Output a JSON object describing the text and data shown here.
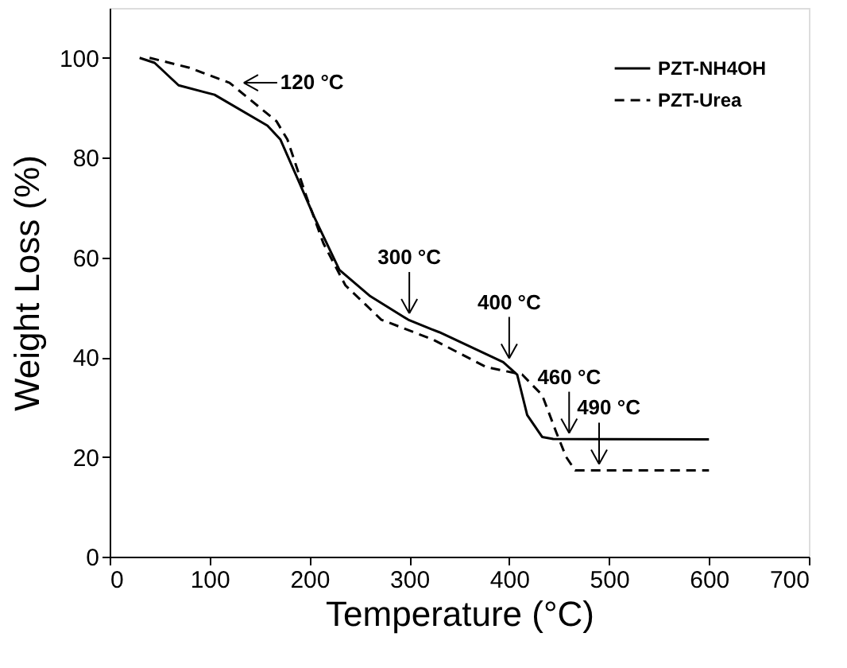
{
  "chart_data": {
    "type": "line",
    "xlabel": "Temperature (°C)",
    "ylabel": "Weight Loss  (%)",
    "xlim": [
      0,
      700
    ],
    "xticks": [
      0,
      100,
      200,
      300,
      400,
      500,
      600,
      700
    ],
    "ylim": [
      0,
      110
    ],
    "yticks": [
      0,
      20,
      40,
      60,
      80,
      100
    ],
    "grid": false,
    "legend": "top right",
    "marker": "none",
    "series": [
      {
        "name": "PZT-NH4OH",
        "color": "#000000",
        "line_style": "solid",
        "x": [
          30,
          45,
          69,
          105,
          158,
          171,
          189,
          205,
          230,
          261,
          299,
          322,
          330,
          394,
          408,
          418,
          433,
          444,
          600
        ],
        "values": [
          100,
          99,
          94.5,
          92.6,
          86.4,
          83.6,
          75.4,
          68,
          57.5,
          52.2,
          47.5,
          45.6,
          45,
          39,
          36.5,
          28.4,
          24,
          23.6,
          23.5
        ]
      },
      {
        "name": "PZT-Urea",
        "color": "#000000",
        "line_style": "dashed",
        "x": [
          40,
          80,
          120,
          167,
          178,
          197,
          214,
          236,
          272,
          324,
          377,
          413,
          433,
          447,
          457,
          466,
          600
        ],
        "values": [
          100,
          98,
          95,
          87.3,
          83.6,
          72.2,
          62.8,
          54.4,
          47.5,
          43.5,
          38,
          36.5,
          32.4,
          25,
          20,
          17.3,
          17.3
        ]
      }
    ],
    "annotations": [
      {
        "text": "120 °C",
        "x": 120,
        "y": 95
      },
      {
        "text": "300 °C",
        "x": 300,
        "y": 47.5
      },
      {
        "text": "400 °C",
        "x": 400,
        "y": 38.5
      },
      {
        "text": "460 °C",
        "x": 460,
        "y": 23.5
      },
      {
        "text": "490 °C",
        "x": 490,
        "y": 17.3
      }
    ]
  }
}
